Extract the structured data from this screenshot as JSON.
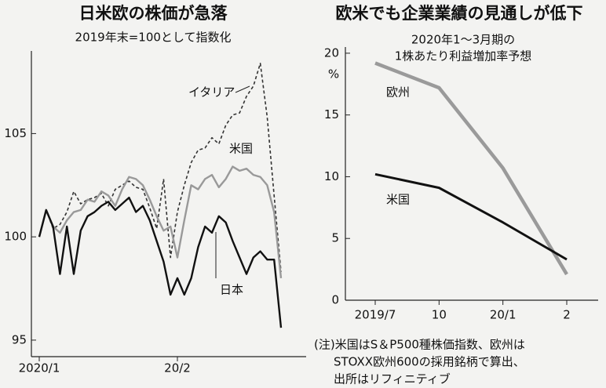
{
  "chart_data": [
    {
      "type": "line",
      "title": "日米欧の株価が急落",
      "subtitle": "2019年末=100として指数化",
      "categories": [
        "2020/1",
        null,
        null,
        null,
        null,
        null,
        null,
        null,
        null,
        null,
        null,
        null,
        null,
        null,
        null,
        null,
        null,
        null,
        null,
        null,
        "20/2",
        null,
        null,
        null,
        null,
        null,
        null,
        null,
        null,
        null,
        null,
        null,
        null,
        null,
        null,
        null
      ],
      "series": [
        {
          "name": "イタリア",
          "color": "#333333",
          "style": "dashed",
          "values": [
            100,
            101.3,
            100.4,
            100.6,
            101.2,
            102.2,
            101.6,
            101.8,
            101.9,
            102.1,
            101.5,
            102.3,
            102.5,
            102.7,
            102.4,
            102.3,
            101.4,
            100.4,
            102.8,
            99,
            101.2,
            102.5,
            103.6,
            104.2,
            104.3,
            104.8,
            104.5,
            105.4,
            105.9,
            106,
            106.8,
            107.3,
            108.4,
            105.8,
            102,
            98.3
          ]
        },
        {
          "name": "米国",
          "color": "#999999",
          "style": "solid",
          "values": [
            100,
            101.3,
            100.5,
            100.2,
            100.8,
            101.2,
            101.3,
            101.8,
            101.7,
            102.2,
            102,
            101.5,
            102.3,
            102.9,
            102.8,
            102.5,
            101.8,
            101,
            100.3,
            100.5,
            99,
            100.8,
            102.5,
            102.3,
            102.8,
            103,
            102.4,
            102.8,
            103.4,
            103.2,
            103.3,
            103,
            102.9,
            102.5,
            101.2,
            98
          ]
        },
        {
          "name": "日本",
          "color": "#111111",
          "style": "solid",
          "values": [
            100,
            101.3,
            100.5,
            98.2,
            100.5,
            98.2,
            100.3,
            101,
            101.2,
            101.5,
            101.7,
            101.3,
            101.6,
            101.9,
            101.2,
            101.5,
            100.8,
            99.8,
            98.8,
            97.2,
            98,
            97.2,
            98,
            99.5,
            100.5,
            100.2,
            101,
            100.7,
            99.8,
            99,
            98.2,
            99,
            99.3,
            98.9,
            98.9,
            95.6
          ]
        }
      ],
      "ylim": [
        94.2,
        109
      ],
      "yticks": [
        95,
        100,
        105
      ]
    },
    {
      "type": "line",
      "title": "欧米でも企業業績の見通しが低下",
      "subtitle": [
        "2020年1～3月期の",
        "1株あたり利益増加率予想"
      ],
      "y_unit": "%",
      "categories": [
        "2019/7",
        "10",
        "20/1",
        "2"
      ],
      "series": [
        {
          "name": "欧州",
          "color": "#9a9a9a",
          "style": "solid",
          "values": [
            19.2,
            17.2,
            10.7,
            2.1
          ]
        },
        {
          "name": "米国",
          "color": "#111111",
          "style": "solid",
          "values": [
            10.2,
            9.1,
            6.3,
            3.3
          ]
        }
      ],
      "ylim": [
        0,
        20.5
      ],
      "yticks": [
        0,
        5,
        10,
        15,
        20
      ],
      "note": [
        "(注)米国はS＆P500種株価指数、欧州は",
        "STOXX欧州600の採用銘柄で算出、",
        "出所はリフィニティブ"
      ]
    }
  ]
}
